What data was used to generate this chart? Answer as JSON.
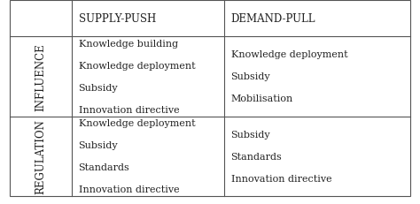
{
  "col_headers": [
    "SUPPLY-PUSH",
    "DEMAND-PULL"
  ],
  "row_headers": [
    "INFLUENCE",
    "REGULATION"
  ],
  "cells": [
    [
      "Knowledge building\nKnowledge deployment\nSubsidy\nInnovation directive",
      "Knowledge deployment\nSubsidy\nMobilisation"
    ],
    [
      "Knowledge deployment\nSubsidy\nStandards\nInnovation directive",
      "Subsidy\nStandards\nInnovation directive"
    ]
  ],
  "bg_color": "#ffffff",
  "border_color": "#555555",
  "text_color": "#222222",
  "header_fontsize": 8.5,
  "cell_fontsize": 8.0,
  "row_header_fontsize": 8.5
}
